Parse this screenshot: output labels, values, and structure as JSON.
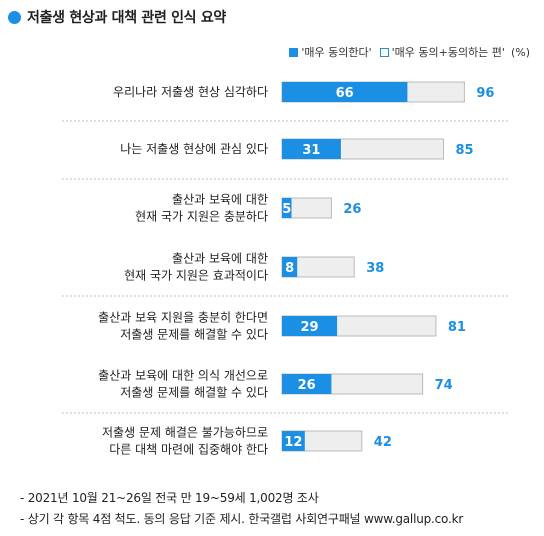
{
  "title": "저출생 현상과 대책 관련 인식 요약",
  "legend": {
    "strong": "'매우 동의한다'",
    "total": "'매우 동의+동의하는 편'",
    "unit": "(%)"
  },
  "colors": {
    "accent": "#1a8fe3",
    "total_fill": "#eeeeee",
    "total_stroke": "#bbbbbb",
    "divider": "#bfbfbf"
  },
  "chart_data": {
    "type": "bar",
    "orientation": "horizontal",
    "title": "저출생 현상과 대책 관련 인식 요약",
    "categories": [
      [
        "우리나라 저출생 현상 심각하다"
      ],
      [
        "나는 저출생 현상에 관심 있다"
      ],
      [
        "출산과 보육에 대한",
        "현재 국가 지원은 충분하다"
      ],
      [
        "출산과 보육에 대한",
        "현재 국가 지원은 효과적이다"
      ],
      [
        "출산과 보육 지원을 충분히 한다면",
        "저출생 문제를 해결할 수 있다"
      ],
      [
        "출산과 보육에 대한 의식 개선으로",
        "저출생 문제를 해결할 수 있다"
      ],
      [
        "저출생 문제 해결은 불가능하므로",
        "다른 대책 마련에 집중해야 한다"
      ]
    ],
    "series": [
      {
        "name": "'매우 동의한다'",
        "values": [
          66,
          31,
          5,
          8,
          29,
          26,
          12
        ]
      },
      {
        "name": "'매우 동의+동의하는 편'",
        "values": [
          96,
          85,
          26,
          38,
          81,
          74,
          42
        ]
      }
    ],
    "xlim": [
      0,
      100
    ],
    "legend_position": "top-right",
    "grid": false
  },
  "footnotes": [
    "- 2021년 10월 21~26일 전국 만 19~59세 1,002명 조사",
    "- 상기 각 항목 4점 척도. 동의 응답 기준 제시. 한국갤럽 사회연구패널 www.gallup.co.kr"
  ]
}
